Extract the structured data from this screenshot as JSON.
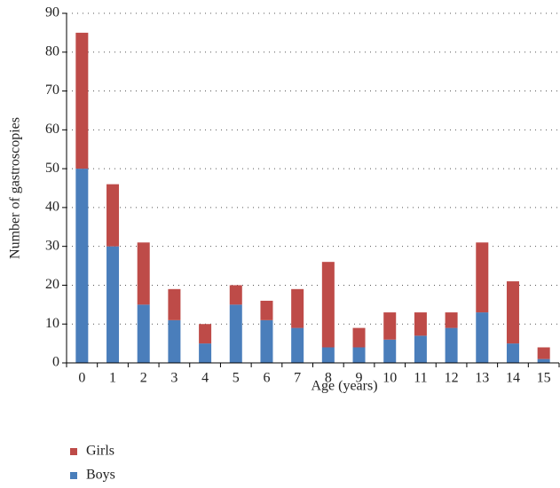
{
  "chart_data": {
    "type": "stacked_bar",
    "x_label": "Age (years)",
    "y_label": "Number of gastroscopies",
    "categories": [
      "0",
      "1",
      "2",
      "3",
      "4",
      "5",
      "6",
      "7",
      "8",
      "9",
      "10",
      "11",
      "12",
      "13",
      "14",
      "15"
    ],
    "series": [
      {
        "name": "Boys",
        "color": "#4a7ebb",
        "values": [
          50,
          30,
          15,
          11,
          5,
          15,
          11,
          9,
          4,
          4,
          6,
          7,
          9,
          13,
          5,
          1
        ]
      },
      {
        "name": "Girls",
        "color": "#be4b48",
        "values": [
          35,
          16,
          16,
          8,
          5,
          5,
          5,
          10,
          22,
          5,
          7,
          6,
          4,
          18,
          16,
          3
        ]
      }
    ],
    "ylim": [
      0,
      90
    ],
    "yticks": [
      0,
      10,
      20,
      30,
      40,
      50,
      60,
      70,
      80,
      90
    ],
    "grid": true
  }
}
